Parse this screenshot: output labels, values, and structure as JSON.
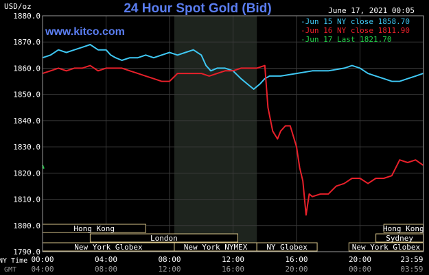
{
  "chart_data": {
    "type": "line",
    "title": "24 Hour Spot Gold (Bid)",
    "timestamp": "June 17, 2021 00:05",
    "watermark": "www.kitco.com",
    "ylabel": "USD/oz",
    "ylim": [
      1790,
      1880
    ],
    "yticks": [
      "1880.0",
      "1870.0",
      "1860.0",
      "1850.0",
      "1840.0",
      "1830.0",
      "1820.0",
      "1810.0",
      "1800.0",
      "1790.0"
    ],
    "ytick_values": [
      1880,
      1870,
      1860,
      1850,
      1840,
      1830,
      1820,
      1810,
      1800,
      1790
    ],
    "xlim": [
      0,
      24
    ],
    "xticks": [
      "00:00",
      "04:00",
      "08:00",
      "12:00",
      "16:00",
      "20:00",
      "23:59"
    ],
    "xtick_values": [
      0,
      4,
      8,
      12,
      16,
      20,
      23.98
    ],
    "xticks_gmt": [
      "04:00",
      "08:00",
      "12:00",
      "16:00",
      "20:00",
      "00:00",
      "03:59"
    ],
    "xlabel_ny": "NY Time",
    "xlabel_gmt": "GMT",
    "grid": true,
    "highlight": {
      "from": 8.3,
      "to": 13.5
    },
    "legend": [
      {
        "label": "Jun 15 NY close 1858.70",
        "color": "#3fc8f4"
      },
      {
        "label": "Jun 16 NY close 1811.90",
        "color": "#e8202a"
      },
      {
        "label": "Jun 17 Last 1821.70",
        "color": "#22d04a"
      }
    ],
    "series": [
      {
        "name": "Jun 15",
        "color": "#3fc8f4",
        "x": [
          0,
          0.5,
          1,
          1.5,
          2,
          2.5,
          3,
          3.5,
          4,
          4.3,
          4.6,
          5,
          5.5,
          6,
          6.5,
          7,
          7.5,
          8,
          8.5,
          9,
          9.5,
          10,
          10.3,
          10.6,
          11,
          11.5,
          12,
          12.5,
          12.9,
          13.3,
          13.7,
          14,
          14.3,
          15,
          16,
          17,
          18,
          19,
          19.5,
          20,
          20.5,
          21,
          21.5,
          22,
          22.5,
          23,
          23.5,
          23.98
        ],
        "y": [
          1864,
          1865,
          1867,
          1866,
          1867,
          1868,
          1869,
          1867,
          1867,
          1865,
          1864,
          1863,
          1864,
          1864,
          1865,
          1864,
          1865,
          1866,
          1865,
          1866,
          1867,
          1865,
          1861,
          1859,
          1860,
          1860,
          1859,
          1856,
          1854,
          1852,
          1854,
          1856,
          1857,
          1857,
          1858,
          1859,
          1859,
          1860,
          1861,
          1860,
          1858,
          1857,
          1856,
          1855,
          1855,
          1856,
          1857,
          1858
        ]
      },
      {
        "name": "Jun 16",
        "color": "#e8202a",
        "x": [
          0,
          0.5,
          1,
          1.5,
          2,
          2.5,
          3,
          3.5,
          4,
          4.5,
          5,
          5.5,
          6,
          6.5,
          7,
          7.5,
          8,
          8.5,
          9,
          9.5,
          10,
          10.5,
          11,
          11.5,
          12,
          12.5,
          13,
          13.5,
          14,
          14.2,
          14.5,
          14.8,
          15,
          15.3,
          15.6,
          16,
          16.2,
          16.4,
          16.6,
          16.8,
          17,
          17.5,
          18,
          18.5,
          19,
          19.5,
          20,
          20.5,
          21,
          21.5,
          22,
          22.5,
          23,
          23.5,
          23.98
        ],
        "y": [
          1858,
          1859,
          1860,
          1859,
          1860,
          1860,
          1861,
          1859,
          1860,
          1860,
          1860,
          1859,
          1858,
          1857,
          1856,
          1855,
          1855,
          1858,
          1858,
          1858,
          1858,
          1857,
          1858,
          1859,
          1859,
          1860,
          1860,
          1860,
          1861,
          1845,
          1836,
          1833,
          1836,
          1838,
          1838,
          1830,
          1822,
          1817,
          1804,
          1812,
          1811,
          1812,
          1812,
          1815,
          1816,
          1818,
          1818,
          1816,
          1818,
          1818,
          1819,
          1825,
          1824,
          1825,
          1823
        ]
      },
      {
        "name": "Jun 17",
        "color": "#22d04a",
        "x": [
          0,
          0.08
        ],
        "y": [
          1823,
          1821.7
        ]
      }
    ],
    "sessions": [
      {
        "label": "Hong Kong",
        "row": 0,
        "start": 0,
        "end": 6.5
      },
      {
        "label": "Hong Kong",
        "row": 0,
        "start": 21.5,
        "end": 23.98
      },
      {
        "label": "London",
        "row": 1,
        "start": 3,
        "end": 12.3
      },
      {
        "label": "Sydney",
        "row": 1,
        "start": 21,
        "end": 23.98
      },
      {
        "label": "New York Globex",
        "row": 2,
        "start": 0,
        "end": 8.3
      },
      {
        "label": "New York NYMEX",
        "row": 2,
        "start": 8.3,
        "end": 13.5
      },
      {
        "label": "NY Globex",
        "row": 2,
        "start": 13.5,
        "end": 17.3
      },
      {
        "label": "New York Globex",
        "row": 2,
        "start": 19.3,
        "end": 23.98
      }
    ]
  }
}
